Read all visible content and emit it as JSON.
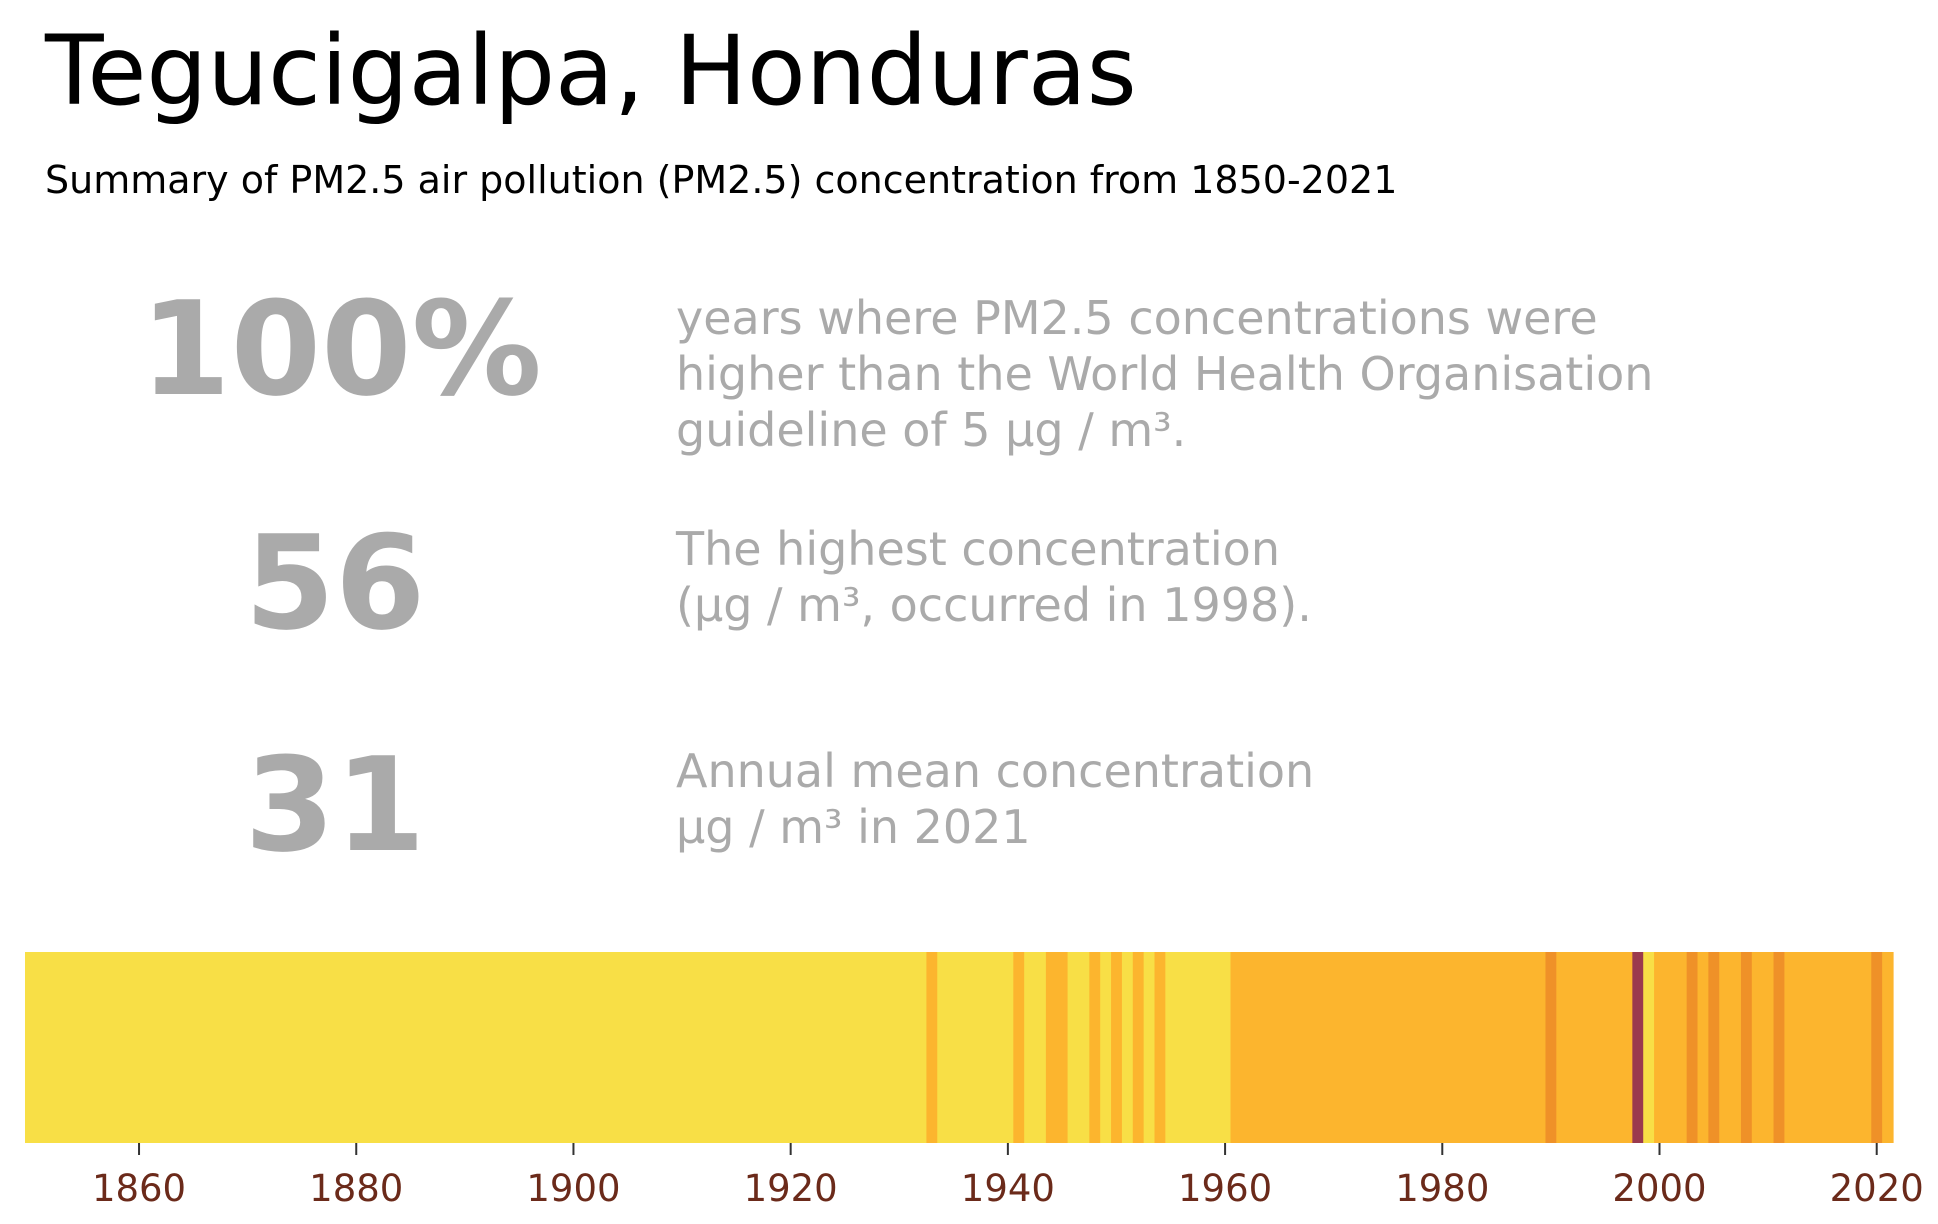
{
  "title": "Tegucigalpa, Honduras",
  "subtitle": "Summary of PM2.5 air pollution (PM2.5) concentration from 1850-2021",
  "stats": [
    {
      "value": "100%",
      "description": "years where PM2.5 concentrations were\nhigher than the World Health Organisation\nguideline of 5 µg / m³."
    },
    {
      "value": "56",
      "description": "The highest concentration\n(µg / m³, occurred in 1998)."
    },
    {
      "value": "31",
      "description": "Annual mean concentration\nµg / m³ in 2021"
    }
  ],
  "chart_data": {
    "type": "heatmap",
    "x_range": [
      1850,
      2021
    ],
    "x_ticks": [
      1860,
      1880,
      1900,
      1920,
      1940,
      1960,
      1980,
      2000,
      2020
    ],
    "colors": {
      "low": "#f8df46",
      "mid": "#fcb52e",
      "high": "#ef9128",
      "peak": "#9a3a4e",
      "tick_label": "#6b2a1a"
    },
    "segments": [
      {
        "start": 1850,
        "end": 1932,
        "level": "low"
      },
      {
        "start": 1933,
        "end": 1933,
        "level": "mid"
      },
      {
        "start": 1934,
        "end": 1940,
        "level": "low"
      },
      {
        "start": 1941,
        "end": 1941,
        "level": "mid"
      },
      {
        "start": 1942,
        "end": 1943,
        "level": "low"
      },
      {
        "start": 1944,
        "end": 1945,
        "level": "mid"
      },
      {
        "start": 1946,
        "end": 1947,
        "level": "low"
      },
      {
        "start": 1948,
        "end": 1948,
        "level": "mid"
      },
      {
        "start": 1949,
        "end": 1949,
        "level": "low"
      },
      {
        "start": 1950,
        "end": 1950,
        "level": "mid"
      },
      {
        "start": 1951,
        "end": 1951,
        "level": "low"
      },
      {
        "start": 1952,
        "end": 1952,
        "level": "mid"
      },
      {
        "start": 1953,
        "end": 1953,
        "level": "low"
      },
      {
        "start": 1954,
        "end": 1954,
        "level": "mid"
      },
      {
        "start": 1955,
        "end": 1960,
        "level": "low"
      },
      {
        "start": 1961,
        "end": 1989,
        "level": "mid"
      },
      {
        "start": 1990,
        "end": 1990,
        "level": "high"
      },
      {
        "start": 1991,
        "end": 1997,
        "level": "mid"
      },
      {
        "start": 1998,
        "end": 1998,
        "level": "peak"
      },
      {
        "start": 1999,
        "end": 1999,
        "level": "low"
      },
      {
        "start": 2000,
        "end": 2002,
        "level": "mid"
      },
      {
        "start": 2003,
        "end": 2003,
        "level": "high"
      },
      {
        "start": 2004,
        "end": 2004,
        "level": "mid"
      },
      {
        "start": 2005,
        "end": 2005,
        "level": "high"
      },
      {
        "start": 2006,
        "end": 2007,
        "level": "mid"
      },
      {
        "start": 2008,
        "end": 2008,
        "level": "high"
      },
      {
        "start": 2009,
        "end": 2010,
        "level": "mid"
      },
      {
        "start": 2011,
        "end": 2011,
        "level": "high"
      },
      {
        "start": 2012,
        "end": 2019,
        "level": "mid"
      },
      {
        "start": 2020,
        "end": 2020,
        "level": "high"
      },
      {
        "start": 2021,
        "end": 2021,
        "level": "mid"
      }
    ]
  }
}
